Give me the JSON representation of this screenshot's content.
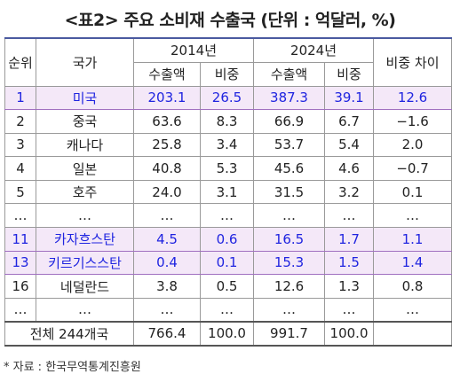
{
  "title": "<표2> 주요 소비재 수출국 (단위 : 억달러, %)",
  "table": {
    "header": {
      "rank": "순위",
      "country": "국가",
      "year1": "2014년",
      "year2": "2024년",
      "diff": "비중 차이",
      "sub": [
        "수출액",
        "비중",
        "수출액",
        "비중"
      ]
    },
    "rows": [
      [
        "1",
        "미국",
        "203.1",
        "26.5",
        "387.3",
        "39.1",
        "12.6"
      ],
      [
        "2",
        "중국",
        "63.6",
        "8.3",
        "66.9",
        "6.7",
        "−1.6"
      ],
      [
        "3",
        "캐나다",
        "25.8",
        "3.4",
        "53.7",
        "5.4",
        "2.0"
      ],
      [
        "4",
        "일본",
        "40.8",
        "5.3",
        "45.6",
        "4.6",
        "−0.7"
      ],
      [
        "5",
        "호주",
        "24.0",
        "3.1",
        "31.5",
        "3.2",
        "0.1"
      ],
      [
        "…",
        "…",
        "…",
        "…",
        "…",
        "…",
        "…"
      ],
      [
        "11",
        "카자흐스탄",
        "4.5",
        "0.6",
        "16.5",
        "1.7",
        "1.1"
      ],
      [
        "13",
        "키르기스스탄",
        "0.4",
        "0.1",
        "15.3",
        "1.5",
        "1.4"
      ],
      [
        "16",
        "네덜란드",
        "3.8",
        "0.5",
        "12.6",
        "1.3",
        "0.8"
      ],
      [
        "…",
        "…",
        "…",
        "…",
        "…",
        "…",
        "…"
      ]
    ],
    "total": {
      "label": "전체 244개국",
      "values": [
        "766.4",
        "100.0",
        "991.7",
        "100.0"
      ]
    }
  },
  "footnote": "* 자료 : 한국무역통계진흥원"
}
